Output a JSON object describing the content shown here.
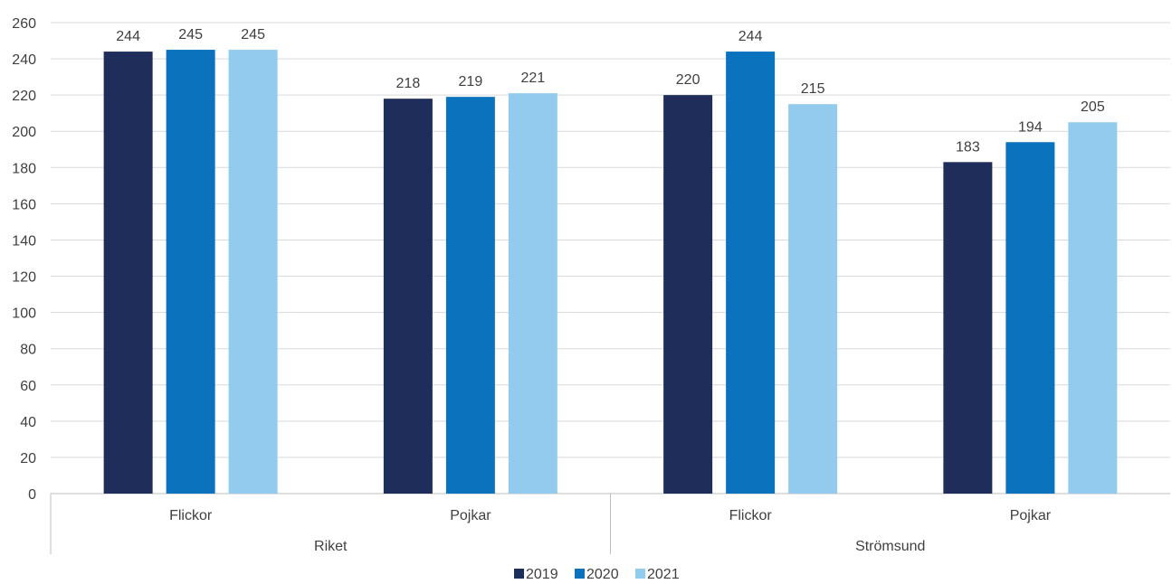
{
  "chart_data": {
    "type": "bar",
    "groups": [
      {
        "name": "Riket",
        "categories": [
          "Flickor",
          "Pojkar"
        ]
      },
      {
        "name": "Strömsund",
        "categories": [
          "Flickor",
          "Pojkar"
        ]
      }
    ],
    "categories": [
      "Flickor",
      "Pojkar",
      "Flickor",
      "Pojkar"
    ],
    "series": [
      {
        "name": "2019",
        "color": "#1f2d5a",
        "values": [
          244,
          218,
          220,
          183
        ]
      },
      {
        "name": "2020",
        "color": "#0b72bd",
        "values": [
          245,
          219,
          244,
          194
        ]
      },
      {
        "name": "2021",
        "color": "#93cbee",
        "values": [
          245,
          221,
          215,
          205
        ]
      }
    ],
    "yticks": [
      0,
      20,
      40,
      60,
      80,
      100,
      120,
      140,
      160,
      180,
      200,
      220,
      240,
      260
    ],
    "ylim": [
      0,
      260
    ],
    "grid": true,
    "data_labels": true,
    "legend_position": "bottom"
  }
}
